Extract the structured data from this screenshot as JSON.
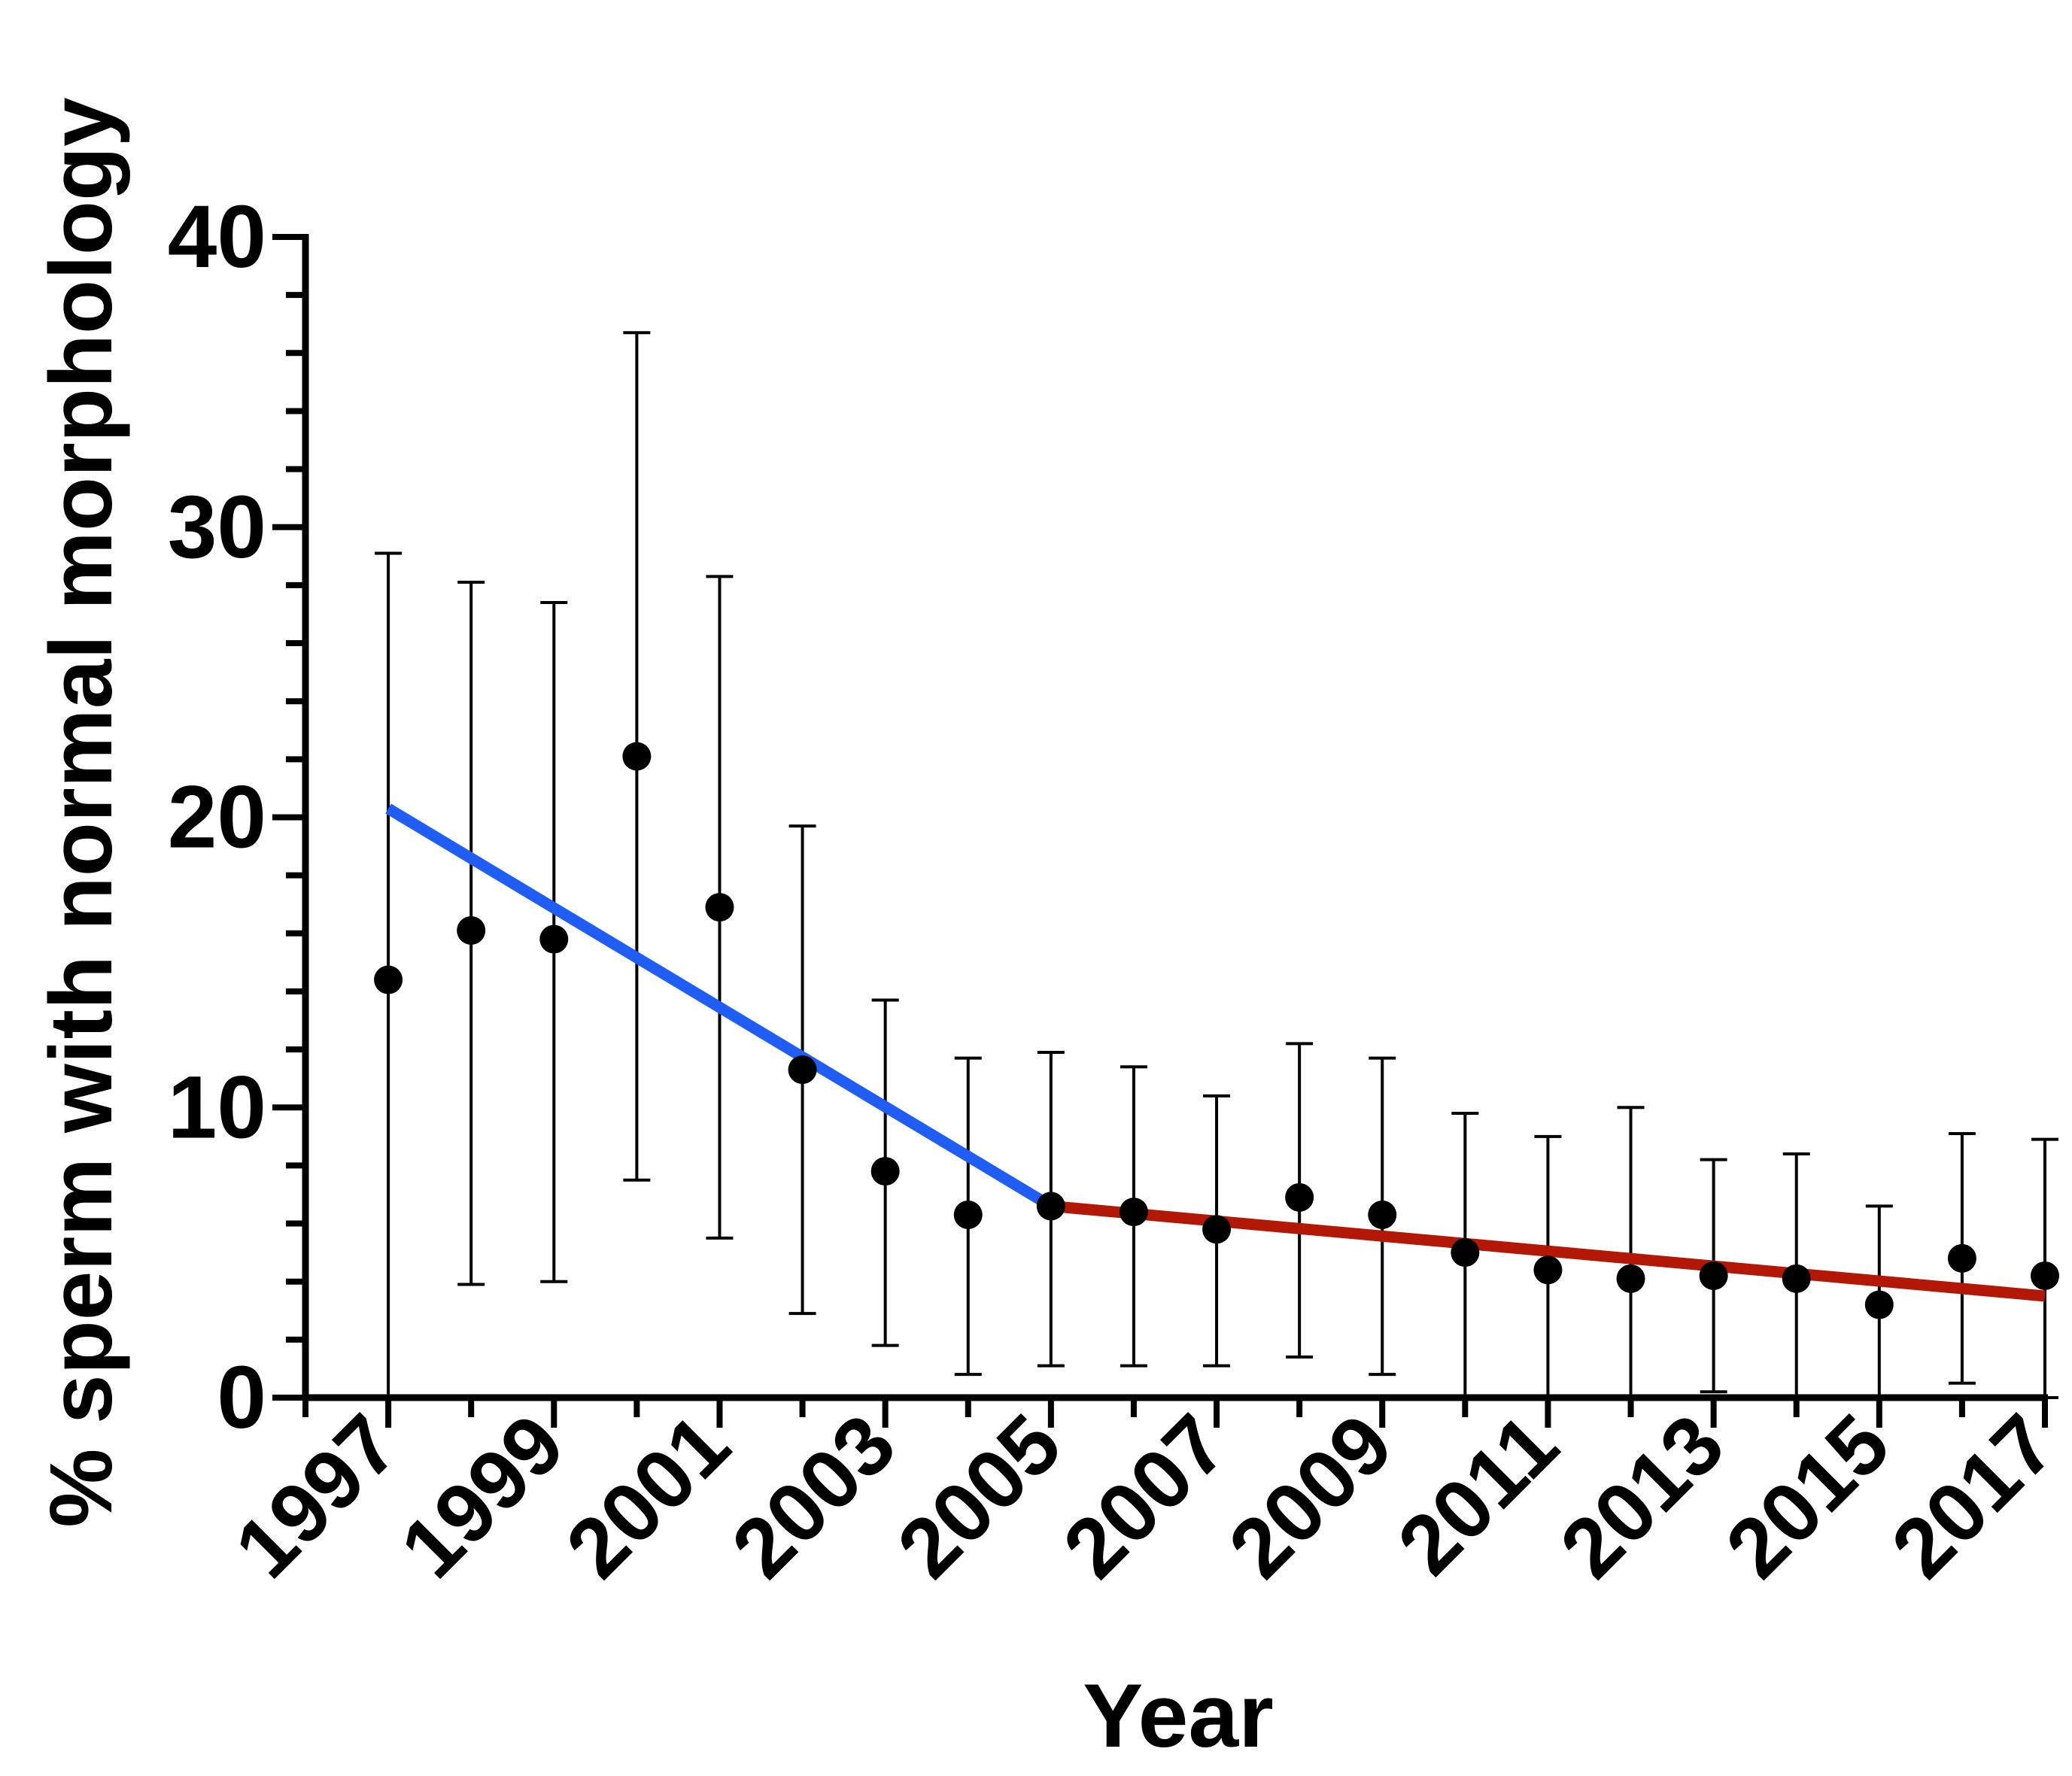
{
  "chart_data": {
    "type": "scatter",
    "xlabel": "Year",
    "ylabel": "% sperm with normal morphology",
    "xlim": [
      1996,
      2017
    ],
    "ylim": [
      0,
      40
    ],
    "y_ticks": [
      "0",
      "10",
      "20",
      "30",
      "40"
    ],
    "x_ticks": [
      "1997",
      "1999",
      "2001",
      "2003",
      "2005",
      "2007",
      "2009",
      "2011",
      "2013",
      "2015",
      "2017"
    ],
    "grid": false,
    "legend": "none",
    "series": [
      {
        "x": [
          1997,
          1998,
          1999,
          2000,
          2001,
          2002,
          2003,
          2004,
          2005,
          2006,
          2007,
          2008,
          2009,
          2010,
          2011,
          2012,
          2013,
          2014,
          2015,
          2016,
          2017
        ],
        "y": [
          14.4,
          16.1,
          15.8,
          22.1,
          16.9,
          11.3,
          7.8,
          6.3,
          6.6,
          6.4,
          5.8,
          6.9,
          6.3,
          5.0,
          4.4,
          4.1,
          4.2,
          4.1,
          3.2,
          4.8,
          4.2
        ],
        "error_upper": [
          29.1,
          28.1,
          27.4,
          36.7,
          28.3,
          19.7,
          13.7,
          11.7,
          11.9,
          11.4,
          10.4,
          12.2,
          11.7,
          9.8,
          9.0,
          10.0,
          8.2,
          8.4,
          6.6,
          9.1,
          8.9
        ],
        "error_lower": [
          0.0,
          3.9,
          4.0,
          7.5,
          5.5,
          2.9,
          1.8,
          0.8,
          1.1,
          1.1,
          1.1,
          1.4,
          0.8,
          0.0,
          0.0,
          0.0,
          0.2,
          0.0,
          0.0,
          0.5,
          0.0
        ],
        "marker": "circle",
        "color": "#000000"
      }
    ],
    "trend_lines": [
      {
        "x": [
          1997,
          2005
        ],
        "y": [
          20.3,
          6.6
        ],
        "color": "#1f5df5"
      },
      {
        "x": [
          2005,
          2017
        ],
        "y": [
          6.6,
          3.5
        ],
        "color": "#b31806"
      }
    ]
  }
}
